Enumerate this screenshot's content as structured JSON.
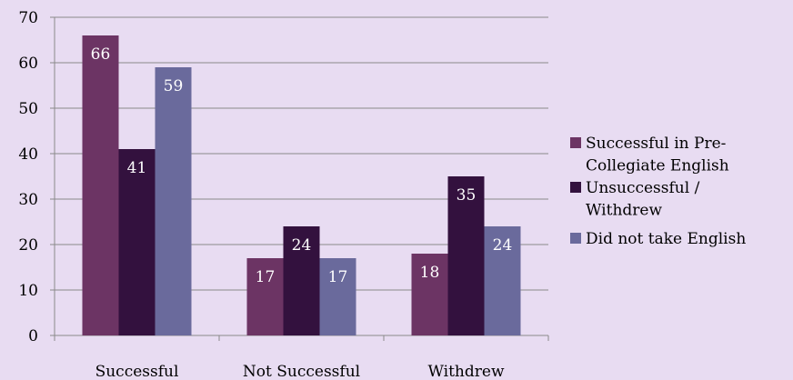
{
  "chart_data": {
    "type": "bar",
    "title": "",
    "xlabel": "",
    "ylabel": "",
    "ylim": [
      0,
      70
    ],
    "yticks": [
      0,
      10,
      20,
      30,
      40,
      50,
      60,
      70
    ],
    "grid": "horizontal",
    "legend_position": "right",
    "categories": [
      "Successful",
      "Not Successful",
      "Withdrew"
    ],
    "series": [
      {
        "name": "Successful in Pre-Collegiate English",
        "legend_lines": [
          "Successful in Pre-",
          "Collegiate English"
        ],
        "color": "#6c3464",
        "values": [
          66,
          17,
          18
        ],
        "labels": [
          "66",
          "17",
          "18"
        ]
      },
      {
        "name": "Unsuccessful / Withdrew",
        "legend_lines": [
          "Unsuccessful /",
          "Withdrew"
        ],
        "color": "#33113e",
        "values": [
          41,
          24,
          35
        ],
        "labels": [
          "41",
          "24",
          "35"
        ]
      },
      {
        "name": "Did not take English",
        "legend_lines": [
          "Did not take English"
        ],
        "color": "#6a6a9c",
        "values": [
          59,
          17,
          24
        ],
        "labels": [
          "59",
          "17",
          "24"
        ]
      }
    ]
  }
}
